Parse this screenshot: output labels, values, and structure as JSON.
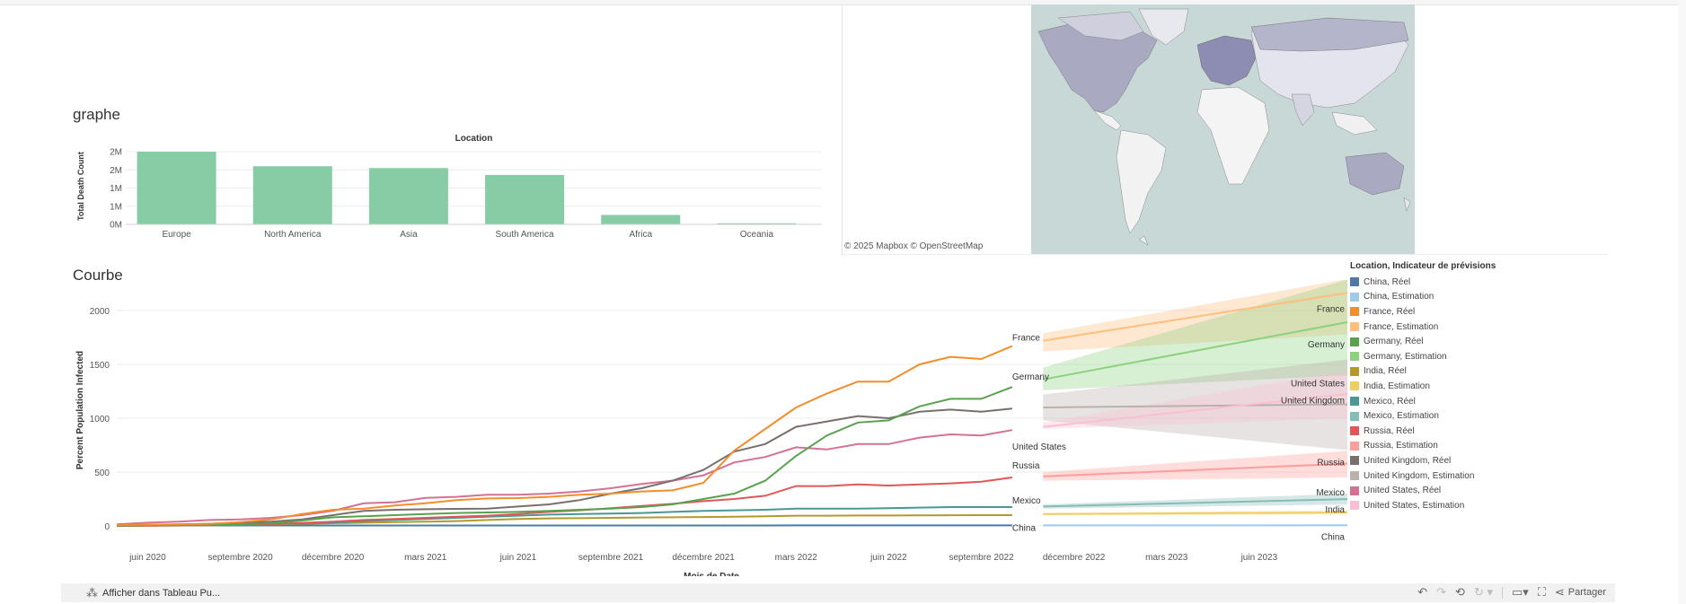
{
  "sections": {
    "bar_title": "graphe",
    "line_title": "Courbe"
  },
  "map": {
    "credit": "© 2025 Mapbox  © OpenStreetMap"
  },
  "colors": {
    "bar_fill": "#86cca4",
    "ocean": "#c8d8d6",
    "land": "#f4f4f4"
  },
  "chart_data": [
    {
      "type": "bar",
      "title": "Location",
      "ylabel": "Total Death Count",
      "categories": [
        "Europe",
        "North America",
        "Asia",
        "South America",
        "Africa",
        "Oceania"
      ],
      "values": [
        2000000,
        1600000,
        1550000,
        1360000,
        260000,
        30000
      ],
      "yticks": [
        {
          "value": 0,
          "label": "0M"
        },
        {
          "value": 500000,
          "label": "1M"
        },
        {
          "value": 1000000,
          "label": "1M"
        },
        {
          "value": 1500000,
          "label": "2M"
        },
        {
          "value": 2000000,
          "label": "2M"
        }
      ],
      "ylim": [
        0,
        2100000
      ],
      "grid": true
    },
    {
      "type": "line",
      "xlabel": "Mois de Date",
      "ylabel": "Percent Population Infected",
      "ylim": [
        -50,
        2200
      ],
      "yticks": [
        0,
        500,
        1000,
        1500,
        2000
      ],
      "x_range": [
        "2020-05",
        "2023-09"
      ],
      "xticks": [
        {
          "x": "2020-06",
          "label": "juin 2020"
        },
        {
          "x": "2020-09",
          "label": "septembre 2020"
        },
        {
          "x": "2020-12",
          "label": "décembre 2020"
        },
        {
          "x": "2021-03",
          "label": "mars 2021"
        },
        {
          "x": "2021-06",
          "label": "juin 2021"
        },
        {
          "x": "2021-09",
          "label": "septembre 2021"
        },
        {
          "x": "2021-12",
          "label": "décembre 2021"
        },
        {
          "x": "2022-03",
          "label": "mars 2022"
        },
        {
          "x": "2022-06",
          "label": "juin 2022"
        },
        {
          "x": "2022-09",
          "label": "septembre 2022"
        },
        {
          "x": "2022-12",
          "label": "décembre 2022"
        },
        {
          "x": "2023-03",
          "label": "mars 2023"
        },
        {
          "x": "2023-06",
          "label": "juin 2023"
        }
      ],
      "actual_months": [
        "2020-05",
        "2020-06",
        "2020-07",
        "2020-08",
        "2020-09",
        "2020-10",
        "2020-11",
        "2020-12",
        "2021-01",
        "2021-02",
        "2021-03",
        "2021-04",
        "2021-05",
        "2021-06",
        "2021-07",
        "2021-08",
        "2021-09",
        "2021-10",
        "2021-11",
        "2021-12",
        "2022-01",
        "2022-02",
        "2022-03",
        "2022-04",
        "2022-05",
        "2022-06",
        "2022-07",
        "2022-08",
        "2022-09",
        "2022-10"
      ],
      "forecast_months": [
        "2022-11",
        "2023-09"
      ],
      "legend_title": "Location, Indicateur de prévisions",
      "series": [
        {
          "name": "France",
          "color": "#f28e2b",
          "est_color": "#ffbe7d",
          "actual": [
            8,
            10,
            14,
            20,
            35,
            60,
            110,
            150,
            160,
            190,
            210,
            240,
            255,
            258,
            270,
            290,
            300,
            320,
            330,
            400,
            700,
            900,
            1100,
            1230,
            1340,
            1340,
            1500,
            1570,
            1550,
            1670
          ],
          "forecast": [
            1720,
            2170
          ],
          "band": [
            [
              1620,
              1790
            ],
            [
              1780,
              2300
            ]
          ]
        },
        {
          "name": "Germany",
          "color": "#59a14f",
          "est_color": "#8cd17d",
          "actual": [
            5,
            8,
            10,
            12,
            15,
            25,
            50,
            80,
            90,
            100,
            110,
            120,
            125,
            130,
            140,
            150,
            160,
            175,
            200,
            250,
            300,
            420,
            650,
            840,
            960,
            980,
            1110,
            1180,
            1180,
            1290
          ],
          "forecast": [
            1360,
            1900
          ],
          "band": [
            [
              1260,
              1470
            ],
            [
              1400,
              2300
            ]
          ]
        },
        {
          "name": "United Kingdom",
          "color": "#79706e",
          "est_color": "#bab0ac",
          "actual": [
            5,
            10,
            15,
            20,
            30,
            40,
            60,
            100,
            140,
            150,
            155,
            158,
            160,
            180,
            200,
            240,
            300,
            350,
            420,
            520,
            690,
            760,
            920,
            970,
            1020,
            1000,
            1060,
            1080,
            1060,
            1090
          ],
          "forecast": [
            1100,
            1130
          ],
          "band": [
            [
              980,
              1220
            ],
            [
              700,
              1550
            ]
          ]
        },
        {
          "name": "United States",
          "color": "#d37295",
          "est_color": "#fabfd2",
          "actual": [
            15,
            30,
            40,
            55,
            60,
            75,
            100,
            140,
            210,
            220,
            260,
            270,
            290,
            290,
            300,
            320,
            350,
            390,
            420,
            470,
            590,
            640,
            730,
            710,
            760,
            760,
            820,
            850,
            840,
            890
          ],
          "forecast": [
            920,
            1230
          ],
          "band": [
            [
              900,
              960
            ],
            [
              1000,
              1450
            ]
          ]
        },
        {
          "name": "Russia",
          "color": "#e15759",
          "est_color": "#ff9d9a",
          "actual": [
            2,
            4,
            6,
            8,
            12,
            18,
            28,
            40,
            55,
            65,
            75,
            85,
            95,
            110,
            130,
            145,
            165,
            185,
            205,
            230,
            250,
            280,
            370,
            370,
            385,
            375,
            385,
            395,
            410,
            450
          ],
          "forecast": [
            460,
            580
          ],
          "band": [
            [
              420,
              500
            ],
            [
              450,
              700
            ]
          ]
        },
        {
          "name": "Mexico",
          "color": "#499894",
          "est_color": "#86bcb6",
          "actual": [
            1,
            3,
            5,
            8,
            12,
            18,
            24,
            30,
            45,
            55,
            65,
            75,
            85,
            95,
            105,
            110,
            115,
            120,
            130,
            140,
            145,
            150,
            160,
            160,
            160,
            165,
            170,
            175,
            175,
            175
          ],
          "forecast": [
            180,
            250
          ],
          "band": [
            [
              160,
              200
            ],
            [
              200,
              300
            ]
          ]
        },
        {
          "name": "India",
          "color": "#b6992d",
          "est_color": "#f1ce63",
          "actual": [
            0,
            1,
            3,
            6,
            10,
            15,
            20,
            25,
            30,
            35,
            40,
            45,
            55,
            65,
            70,
            72,
            75,
            78,
            80,
            82,
            85,
            90,
            95,
            95,
            97,
            97,
            98,
            99,
            100,
            100
          ],
          "forecast": [
            110,
            125
          ],
          "band": [
            [
              100,
              120
            ],
            [
              105,
              145
            ]
          ]
        },
        {
          "name": "China",
          "color": "#4e79a7",
          "est_color": "#a0cbe8",
          "actual": [
            4,
            4,
            4,
            4,
            4,
            4,
            4,
            4,
            4,
            4,
            4,
            4,
            4,
            4,
            4,
            4,
            4,
            4,
            4,
            4,
            4,
            4,
            5,
            5,
            5,
            5,
            5,
            5,
            5,
            5
          ],
          "forecast": [
            5,
            6
          ],
          "band": [
            [
              3,
              7
            ],
            [
              3,
              9
            ]
          ]
        }
      ],
      "end_labels": [
        {
          "series": "France",
          "text": "France"
        },
        {
          "series": "Germany",
          "text": "Germany"
        },
        {
          "series": "United States",
          "text": "United States"
        },
        {
          "series": "Russia",
          "text": "Russia"
        },
        {
          "series": "Mexico",
          "text": "Mexico"
        },
        {
          "series": "China",
          "text": "China"
        }
      ],
      "forecast_labels": [
        {
          "series": "France",
          "text": "France"
        },
        {
          "series": "Germany",
          "text": "Germany"
        },
        {
          "series": "United States",
          "text": "United States"
        },
        {
          "series": "United Kingdom",
          "text": "United Kingdom"
        },
        {
          "series": "Russia",
          "text": "Russia"
        },
        {
          "series": "Mexico",
          "text": "Mexico"
        },
        {
          "series": "India",
          "text": "India"
        },
        {
          "series": "China",
          "text": "China"
        }
      ],
      "legend": [
        {
          "label": "China, Réel",
          "color": "#4e79a7"
        },
        {
          "label": "China, Estimation",
          "color": "#a0cbe8"
        },
        {
          "label": "France, Réel",
          "color": "#f28e2b"
        },
        {
          "label": "France, Estimation",
          "color": "#ffbe7d"
        },
        {
          "label": "Germany, Réel",
          "color": "#59a14f"
        },
        {
          "label": "Germany, Estimation",
          "color": "#8cd17d"
        },
        {
          "label": "India, Réel",
          "color": "#b6992d"
        },
        {
          "label": "India, Estimation",
          "color": "#f1ce63"
        },
        {
          "label": "Mexico, Réel",
          "color": "#499894"
        },
        {
          "label": "Mexico, Estimation",
          "color": "#86bcb6"
        },
        {
          "label": "Russia, Réel",
          "color": "#e15759"
        },
        {
          "label": "Russia, Estimation",
          "color": "#ff9d9a"
        },
        {
          "label": "United Kingdom, Réel",
          "color": "#79706e"
        },
        {
          "label": "United Kingdom, Estimation",
          "color": "#bab0ac"
        },
        {
          "label": "United States, Réel",
          "color": "#d37295"
        },
        {
          "label": "United States, Estimation",
          "color": "#fabfd2"
        }
      ]
    }
  ],
  "toolbar": {
    "view_in_tableau": "Afficher dans Tableau Pu...",
    "undo_icon": "undo-icon",
    "redo_icon": "redo-icon",
    "revert_icon": "revert-icon",
    "refresh_icon": "refresh-icon",
    "device_icon": "device-preview-icon",
    "fullscreen_icon": "fullscreen-icon",
    "share_icon": "share-icon",
    "share_label": "Partager"
  }
}
